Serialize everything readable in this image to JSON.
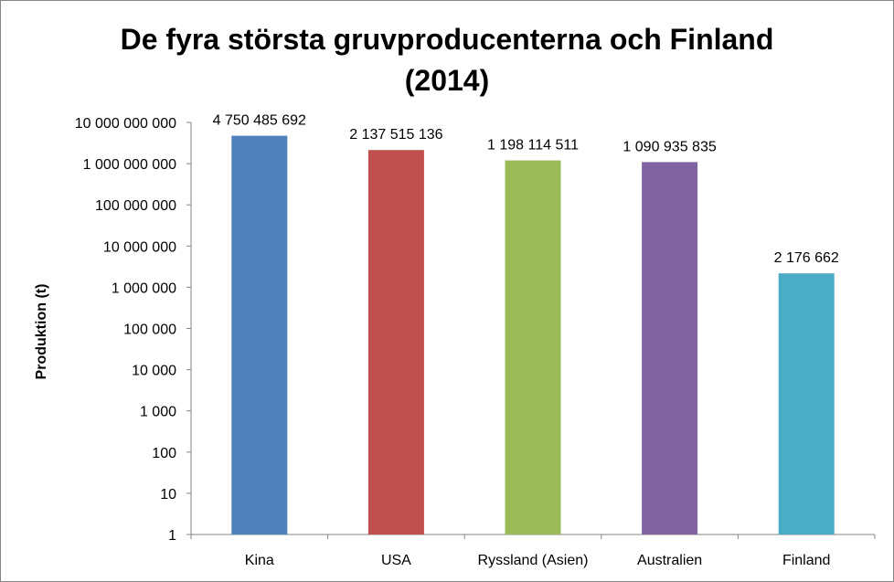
{
  "chart_data": {
    "type": "bar",
    "title_lines": [
      "De fyra största gruvproducenterna och Finland",
      "(2014)"
    ],
    "xlabel": "",
    "ylabel": "Produktion (t)",
    "y_scale": "log",
    "ylim": [
      1,
      10000000000
    ],
    "y_ticks": [
      1,
      10,
      100,
      1000,
      10000,
      100000,
      1000000,
      10000000,
      100000000,
      1000000000,
      10000000000
    ],
    "y_tick_labels": [
      "1",
      "10",
      "100",
      "1 000",
      "10 000",
      "100 000",
      "1 000 000",
      "10 000 000",
      "100 000 000",
      "1 000 000 000",
      "10 000 000 000"
    ],
    "categories": [
      "Kina",
      "USA",
      "Ryssland (Asien)",
      "Australien",
      "Finland"
    ],
    "values": [
      4750485692,
      2137515136,
      1198114511,
      1090935835,
      2176662
    ],
    "value_labels": [
      "4 750 485 692",
      "2 137 515 136",
      "1 198 114 511",
      "1 090 935 835",
      "2 176 662"
    ],
    "colors": [
      "#4F81BD",
      "#C0504D",
      "#9BBB59",
      "#8064A2",
      "#4BACC6"
    ],
    "grid": false,
    "legend": "none"
  }
}
